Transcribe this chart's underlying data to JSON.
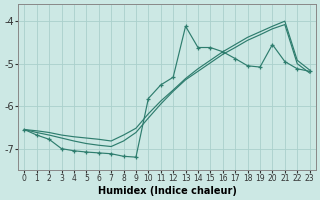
{
  "xlabel": "Humidex (Indice chaleur)",
  "bg_color": "#cce8e4",
  "grid_color": "#aad0cc",
  "line_color": "#2e7d6e",
  "marker": "+",
  "xlim": [
    -0.5,
    23.5
  ],
  "ylim": [
    -7.5,
    -3.6
  ],
  "xticks": [
    0,
    1,
    2,
    3,
    4,
    5,
    6,
    7,
    8,
    9,
    10,
    11,
    12,
    13,
    14,
    15,
    16,
    17,
    18,
    19,
    20,
    21,
    22,
    23
  ],
  "yticks": [
    -7,
    -6,
    -5,
    -4
  ],
  "line1_x": [
    0,
    1,
    2,
    3,
    4,
    5,
    6,
    7,
    8,
    9,
    10,
    11,
    12,
    13,
    14,
    15,
    16,
    17,
    18,
    19,
    20,
    21,
    22,
    23
  ],
  "line1_y": [
    -6.55,
    -6.58,
    -6.62,
    -6.68,
    -6.72,
    -6.75,
    -6.78,
    -6.82,
    -6.68,
    -6.52,
    -6.18,
    -5.88,
    -5.62,
    -5.35,
    -5.12,
    -4.92,
    -4.72,
    -4.55,
    -4.38,
    -4.25,
    -4.12,
    -4.0,
    -4.92,
    -5.15
  ],
  "line2_x": [
    0,
    1,
    2,
    3,
    4,
    5,
    6,
    7,
    8,
    9,
    10,
    11,
    12,
    13,
    14,
    15,
    16,
    17,
    18,
    19,
    20,
    21,
    22,
    23
  ],
  "line2_y": [
    -6.55,
    -6.62,
    -6.68,
    -6.75,
    -6.82,
    -6.88,
    -6.92,
    -6.95,
    -6.82,
    -6.62,
    -6.28,
    -5.95,
    -5.65,
    -5.38,
    -5.18,
    -4.98,
    -4.78,
    -4.62,
    -4.45,
    -4.32,
    -4.18,
    -4.08,
    -5.0,
    -5.22
  ],
  "line3_x": [
    0,
    1,
    2,
    3,
    4,
    5,
    6,
    7,
    8,
    9,
    10,
    11,
    12,
    13,
    14,
    15,
    16,
    17,
    18,
    19,
    20,
    21,
    22,
    23
  ],
  "line3_y": [
    -6.55,
    -6.68,
    -6.78,
    -7.0,
    -7.05,
    -7.08,
    -7.1,
    -7.12,
    -7.18,
    -7.2,
    -5.82,
    -5.5,
    -5.32,
    -4.12,
    -4.62,
    -4.62,
    -4.72,
    -4.88,
    -5.05,
    -5.08,
    -4.55,
    -4.95,
    -5.12,
    -5.18
  ]
}
